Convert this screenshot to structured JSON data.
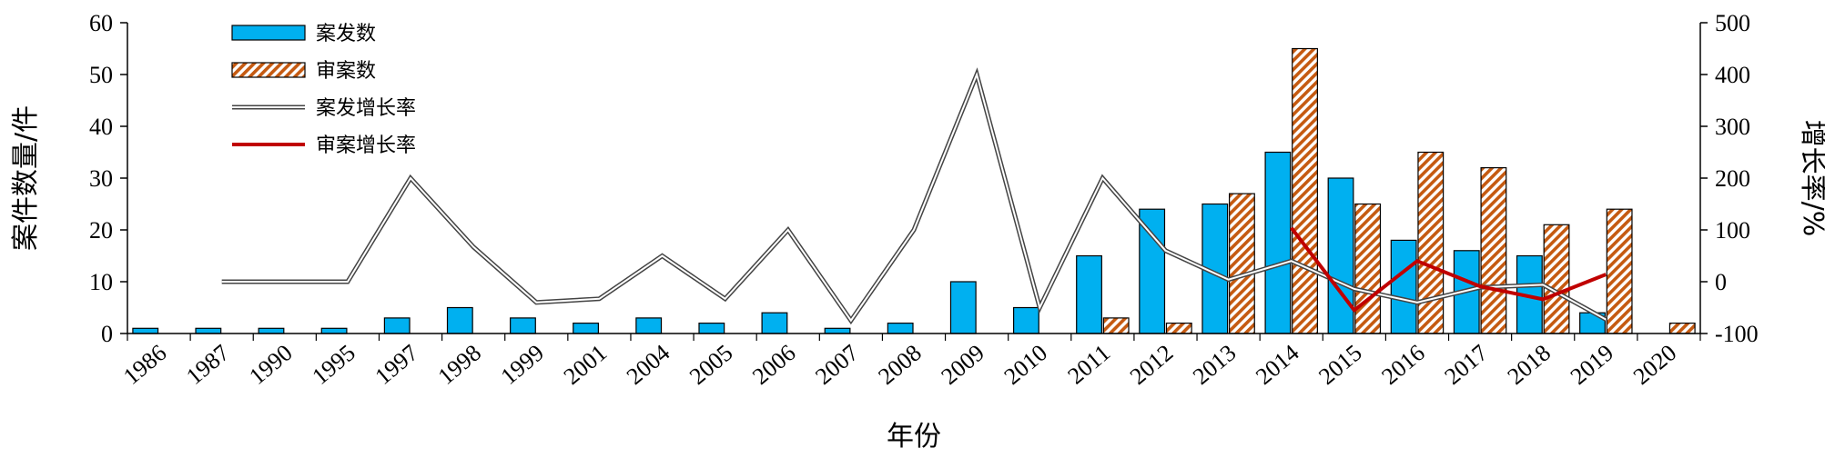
{
  "chart_data": {
    "type": "bar",
    "categories": [
      "1986",
      "1987",
      "1990",
      "1995",
      "1997",
      "1998",
      "1999",
      "2001",
      "2004",
      "2005",
      "2006",
      "2007",
      "2008",
      "2009",
      "2010",
      "2011",
      "2012",
      "2013",
      "2014",
      "2015",
      "2016",
      "2017",
      "2018",
      "2019",
      "2020"
    ],
    "xlabel": "年份",
    "ylabel_left": "案件数量/件",
    "ylabel_right": "增长率/%",
    "ylim_left": [
      0,
      60
    ],
    "ylim_right": [
      -100,
      500
    ],
    "yticks_left": [
      0,
      10,
      20,
      30,
      40,
      50,
      60
    ],
    "yticks_right": [
      -100,
      0,
      100,
      200,
      300,
      400,
      500
    ],
    "grid": false,
    "legend_position": "top-left",
    "series": [
      {
        "name": "案发数",
        "kind": "bar",
        "axis": "left",
        "color": "#00B0F0",
        "values": [
          1,
          1,
          1,
          1,
          3,
          5,
          3,
          2,
          3,
          2,
          4,
          1,
          2,
          10,
          5,
          15,
          24,
          25,
          35,
          30,
          18,
          16,
          15,
          4,
          null
        ]
      },
      {
        "name": "审案数",
        "kind": "bar",
        "axis": "left",
        "color": "#C55A11",
        "pattern": "diagonal-hatch",
        "values": [
          null,
          null,
          null,
          null,
          null,
          null,
          null,
          null,
          null,
          null,
          null,
          null,
          null,
          null,
          null,
          3,
          2,
          27,
          55,
          25,
          35,
          32,
          21,
          24,
          2
        ]
      },
      {
        "name": "案发增长率",
        "kind": "line",
        "axis": "right",
        "color": "#444444",
        "style": "double",
        "values": [
          null,
          0,
          0,
          0,
          200,
          67,
          -40,
          -33,
          50,
          -33,
          100,
          -75,
          100,
          400,
          -50,
          200,
          60,
          4,
          40,
          -14,
          -40,
          -11,
          -6,
          -73,
          null
        ]
      },
      {
        "name": "审案增长率",
        "kind": "line",
        "axis": "right",
        "color": "#C00000",
        "style": "solid",
        "values": [
          null,
          null,
          null,
          null,
          null,
          null,
          null,
          null,
          null,
          null,
          null,
          null,
          null,
          null,
          null,
          null,
          null,
          null,
          104,
          -55,
          40,
          -9,
          -34,
          14,
          null
        ]
      }
    ]
  }
}
